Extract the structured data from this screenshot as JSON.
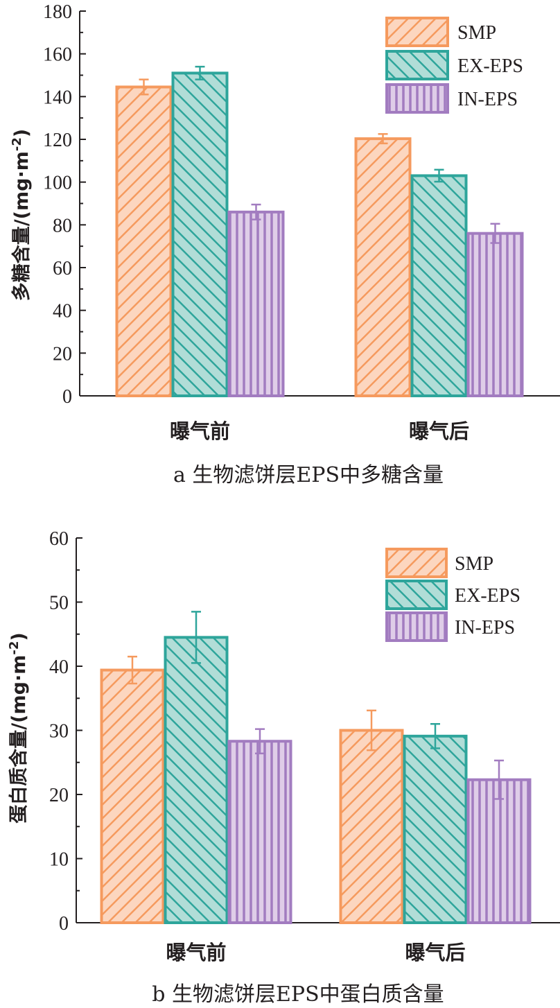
{
  "colors": {
    "SMP": {
      "stroke": "#f59a5e",
      "fill": "#fcd6bf"
    },
    "EX-EPS": {
      "stroke": "#2ea59b",
      "fill": "#b1ddd7"
    },
    "IN-EPS": {
      "stroke": "#a27cc0",
      "fill": "#dfcde8"
    },
    "axis": "#231f20"
  },
  "chart_data": [
    {
      "type": "bar",
      "panel": "a",
      "title": "a 生物滤饼层EPS中多糖含量",
      "ylabel_main": "多糖含量/(mg·m",
      "ylabel_sup": "-2",
      "ylabel_close": ")",
      "categories": [
        "曝气前",
        "曝气后"
      ],
      "ylim": [
        0,
        180
      ],
      "yticks": [
        0,
        20,
        40,
        60,
        80,
        100,
        120,
        140,
        160,
        180
      ],
      "series": [
        {
          "name": "SMP",
          "pattern": "diag-right",
          "values": [
            144.5,
            120.3
          ],
          "errors": [
            3.5,
            2.2
          ]
        },
        {
          "name": "EX-EPS",
          "pattern": "diag-left",
          "values": [
            151.0,
            103.0
          ],
          "errors": [
            3.0,
            2.8
          ]
        },
        {
          "name": "IN-EPS",
          "pattern": "vertical",
          "values": [
            86.0,
            76.0
          ],
          "errors": [
            3.5,
            4.5
          ]
        }
      ]
    },
    {
      "type": "bar",
      "panel": "b",
      "title": "b 生物滤饼层EPS中蛋白质含量",
      "ylabel_main": "蛋白质含量/(mg·m",
      "ylabel_sup": "-2",
      "ylabel_close": ")",
      "categories": [
        "曝气前",
        "曝气后"
      ],
      "ylim": [
        0,
        60
      ],
      "yticks": [
        0,
        10,
        20,
        30,
        40,
        50,
        60
      ],
      "series": [
        {
          "name": "SMP",
          "pattern": "diag-right",
          "values": [
            39.4,
            30.0
          ],
          "errors": [
            2.1,
            3.1
          ]
        },
        {
          "name": "EX-EPS",
          "pattern": "diag-left",
          "values": [
            44.5,
            29.1
          ],
          "errors": [
            4.0,
            1.9
          ]
        },
        {
          "name": "IN-EPS",
          "pattern": "vertical",
          "values": [
            28.3,
            22.3
          ],
          "errors": [
            1.9,
            3.0
          ]
        }
      ]
    }
  ]
}
